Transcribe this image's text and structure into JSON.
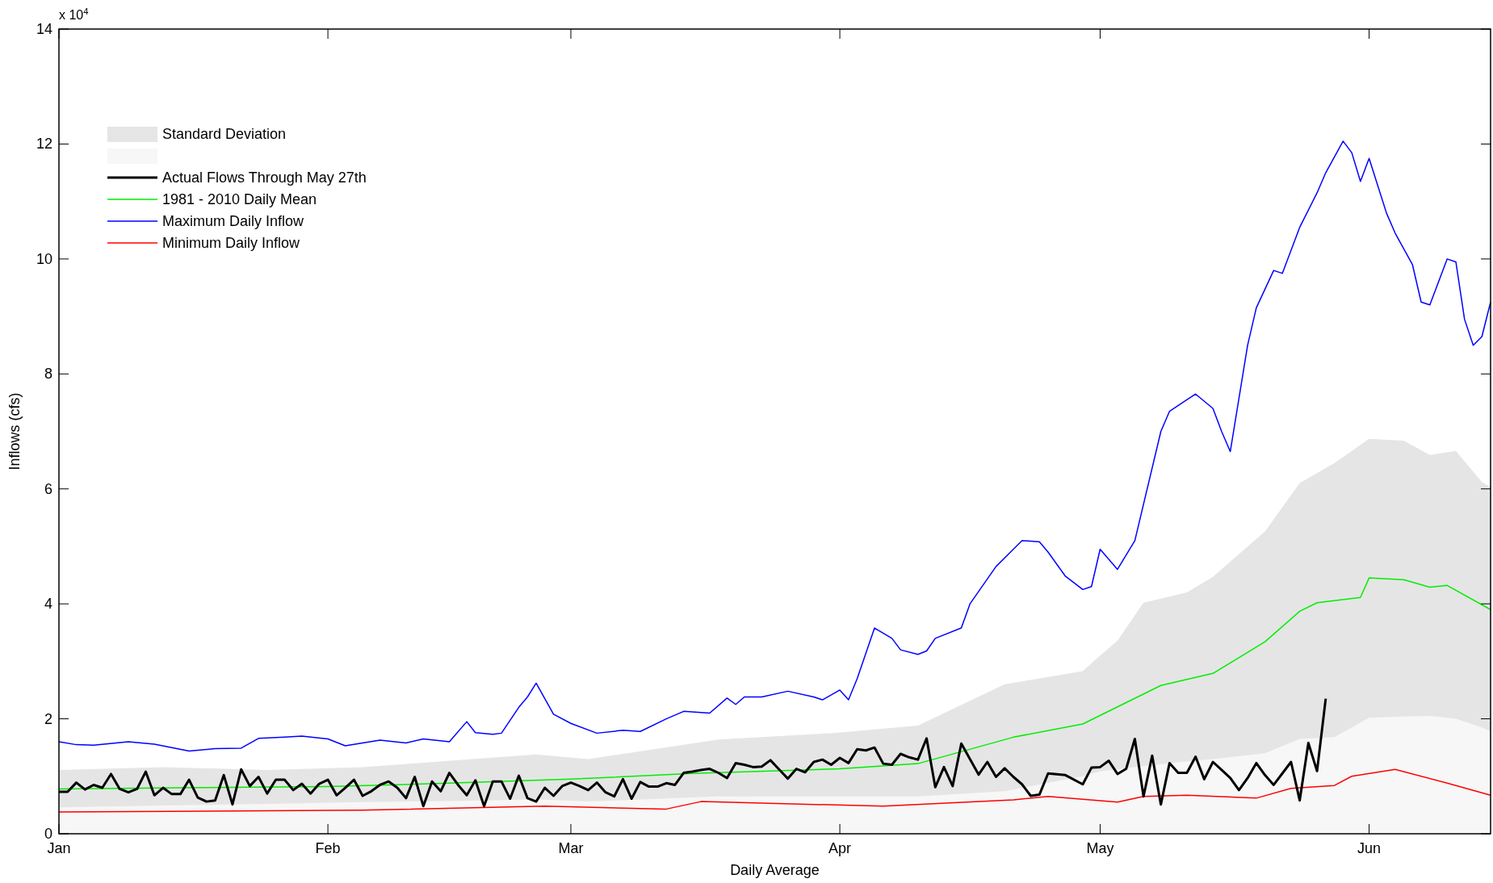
{
  "chart_data": {
    "type": "line",
    "xlabel": "Daily Average",
    "ylabel": "Inflows (cfs)",
    "annotations": [
      "x 10$^{4}$"
    ],
    "xlim": [
      "--01-01",
      "--06-15"
    ],
    "xticks": [
      {
        "value": "--01-01",
        "label": "Jan"
      },
      {
        "value": "--02-01",
        "label": "Feb"
      },
      {
        "value": "--03-01",
        "label": "Mar"
      },
      {
        "value": "--04-01",
        "label": "Apr"
      },
      {
        "value": "--05-01",
        "label": "May"
      },
      {
        "value": "--06-01",
        "label": "Jun"
      }
    ],
    "ylim": [
      0,
      14
    ],
    "yticks": [
      0,
      2,
      4,
      6,
      8,
      10,
      12,
      14
    ],
    "grid": false,
    "legend": "top left",
    "series": [
      {
        "name": "Standard Deviation",
        "type": "area",
        "color": "#e5e5e5",
        "x": [
          "--01-01",
          "--01-13",
          "--01-25",
          "--02-05",
          "--02-16",
          "--02-25",
          "--03-03",
          "--03-18",
          "--03-31",
          "--04-10",
          "--04-20",
          "--04-29",
          "--05-01",
          "--05-03",
          "--05-06",
          "--05-11",
          "--05-14",
          "--05-20",
          "--05-24",
          "--05-28",
          "--06-01",
          "--06-05",
          "--06-08",
          "--06-11",
          "--06-14",
          "--06-15"
        ],
        "values": [
          1.11,
          1.16,
          1.11,
          1.16,
          1.28,
          1.38,
          1.3,
          1.64,
          1.75,
          1.88,
          2.6,
          2.83,
          3.1,
          3.36,
          4.02,
          4.2,
          4.47,
          5.26,
          6.1,
          6.45,
          6.87,
          6.84,
          6.59,
          6.66,
          6.12,
          6.03
        ]
      },
      {
        "type": "area",
        "color": "#f7f7f7",
        "x": [
          "--01-01",
          "--01-13",
          "--01-25",
          "--02-05",
          "--02-16",
          "--02-25",
          "--03-03",
          "--03-18",
          "--03-31",
          "--04-10",
          "--04-20",
          "--04-29",
          "--05-01",
          "--05-03",
          "--05-06",
          "--05-11",
          "--05-14",
          "--05-20",
          "--05-24",
          "--05-28",
          "--06-01",
          "--06-05",
          "--06-08",
          "--06-11",
          "--06-14",
          "--06-15"
        ],
        "values": [
          0.46,
          0.49,
          0.52,
          0.55,
          0.57,
          0.6,
          0.56,
          0.65,
          0.65,
          0.65,
          0.74,
          1.0,
          1.09,
          1.12,
          1.18,
          1.26,
          1.3,
          1.4,
          1.65,
          1.68,
          2.02,
          2.04,
          2.05,
          2.0,
          1.85,
          1.78
        ]
      },
      {
        "name": "Actual Flows Through May 27th",
        "color": "#000000",
        "x": [
          "--01-01",
          "--01-02",
          "--01-03",
          "--01-04",
          "--01-05",
          "--01-06",
          "--01-07",
          "--01-08",
          "--01-09",
          "--01-10",
          "--01-11",
          "--01-12",
          "--01-13",
          "--01-14",
          "--01-15",
          "--01-16",
          "--01-17",
          "--01-18",
          "--01-19",
          "--01-20",
          "--01-21",
          "--01-22",
          "--01-23",
          "--01-24",
          "--01-25",
          "--01-26",
          "--01-27",
          "--01-28",
          "--01-29",
          "--01-30",
          "--01-31",
          "--02-01",
          "--02-02",
          "--02-03",
          "--02-04",
          "--02-05",
          "--02-06",
          "--02-07",
          "--02-08",
          "--02-09",
          "--02-10",
          "--02-11",
          "--02-12",
          "--02-13",
          "--02-14",
          "--02-15",
          "--02-16",
          "--02-17",
          "--02-18",
          "--02-19",
          "--02-20",
          "--02-21",
          "--02-22",
          "--02-23",
          "--02-24",
          "--02-25",
          "--02-26",
          "--02-27",
          "--02-28",
          "--03-01",
          "--03-02",
          "--03-03",
          "--03-04",
          "--03-05",
          "--03-06",
          "--03-07",
          "--03-08",
          "--03-09",
          "--03-10",
          "--03-11",
          "--03-12",
          "--03-13",
          "--03-14",
          "--03-15",
          "--03-16",
          "--03-17",
          "--03-18",
          "--03-19",
          "--03-20",
          "--03-21",
          "--03-22",
          "--03-23",
          "--03-24",
          "--03-25",
          "--03-26",
          "--03-27",
          "--03-28",
          "--03-29",
          "--03-30",
          "--03-31",
          "--04-01",
          "--04-02",
          "--04-03",
          "--04-04",
          "--04-05",
          "--04-06",
          "--04-07",
          "--04-08",
          "--04-09",
          "--04-10",
          "--04-11",
          "--04-12",
          "--04-13",
          "--04-14",
          "--04-15",
          "--04-16",
          "--04-17",
          "--04-18",
          "--04-19",
          "--04-20",
          "--04-21",
          "--04-22",
          "--04-23",
          "--04-24",
          "--04-25",
          "--04-27",
          "--04-29",
          "--04-30",
          "--05-01",
          "--05-02",
          "--05-03",
          "--05-04",
          "--05-05",
          "--05-06",
          "--05-07",
          "--05-08",
          "--05-09",
          "--05-10",
          "--05-11",
          "--05-12",
          "--05-13",
          "--05-14",
          "--05-15",
          "--05-16",
          "--05-17",
          "--05-18",
          "--05-19",
          "--05-20",
          "--05-21",
          "--05-22",
          "--05-23",
          "--05-24",
          "--05-25",
          "--05-26",
          "--05-27"
        ],
        "values": [
          0.73,
          0.73,
          0.89,
          0.77,
          0.85,
          0.8,
          1.04,
          0.78,
          0.72,
          0.78,
          1.08,
          0.67,
          0.8,
          0.69,
          0.69,
          0.94,
          0.63,
          0.56,
          0.58,
          1.02,
          0.51,
          1.12,
          0.83,
          0.99,
          0.7,
          0.94,
          0.94,
          0.76,
          0.87,
          0.7,
          0.87,
          0.94,
          0.67,
          0.8,
          0.94,
          0.66,
          0.74,
          0.85,
          0.91,
          0.8,
          0.62,
          0.99,
          0.48,
          0.91,
          0.74,
          1.06,
          0.85,
          0.67,
          0.93,
          0.48,
          0.91,
          0.91,
          0.61,
          1.01,
          0.62,
          0.56,
          0.8,
          0.66,
          0.83,
          0.89,
          0.83,
          0.76,
          0.89,
          0.72,
          0.65,
          0.95,
          0.61,
          0.9,
          0.82,
          0.82,
          0.88,
          0.85,
          1.06,
          1.08,
          1.11,
          1.13,
          1.06,
          0.97,
          1.23,
          1.2,
          1.16,
          1.17,
          1.28,
          1.12,
          0.96,
          1.13,
          1.07,
          1.25,
          1.29,
          1.2,
          1.32,
          1.23,
          1.47,
          1.45,
          1.5,
          1.22,
          1.2,
          1.39,
          1.33,
          1.29,
          1.66,
          0.81,
          1.16,
          0.83,
          1.57,
          1.3,
          1.03,
          1.25,
          0.99,
          1.14,
          0.99,
          0.86,
          0.66,
          0.68,
          1.05,
          1.02,
          0.86,
          1.15,
          1.16,
          1.27,
          1.04,
          1.13,
          1.65,
          0.65,
          1.36,
          0.51,
          1.23,
          1.06,
          1.06,
          1.34,
          0.95,
          1.25,
          1.11,
          0.97,
          0.76,
          0.97,
          1.23,
          1.02,
          0.85,
          1.05,
          1.25,
          0.58,
          1.58,
          1.09,
          2.35
        ]
      },
      {
        "name": "1981 - 2010 Daily Mean",
        "color": "#00ee00",
        "x": [
          "--01-01",
          "--01-15",
          "--02-01",
          "--02-15",
          "--03-01",
          "--03-15",
          "--04-01",
          "--04-10",
          "--04-21",
          "--04-29",
          "--05-08",
          "--05-14",
          "--05-20",
          "--05-24",
          "--05-26",
          "--05-31",
          "--06-01",
          "--06-05",
          "--06-08",
          "--06-10",
          "--06-15"
        ],
        "values": [
          0.78,
          0.8,
          0.82,
          0.88,
          0.95,
          1.05,
          1.13,
          1.22,
          1.68,
          1.91,
          2.58,
          2.79,
          3.34,
          3.87,
          4.02,
          4.11,
          4.45,
          4.42,
          4.29,
          4.32,
          3.9
        ]
      },
      {
        "name": "Maximum Daily Inflow",
        "color": "#0000ff",
        "x": [
          "--01-01",
          "--01-03",
          "--01-05",
          "--01-09",
          "--01-12",
          "--01-16",
          "--01-19",
          "--01-22",
          "--01-24",
          "--01-27",
          "--01-29",
          "--02-01",
          "--02-03",
          "--02-07",
          "--02-10",
          "--02-12",
          "--02-15",
          "--02-17",
          "--02-18",
          "--02-20",
          "--02-21",
          "--02-23",
          "--02-24",
          "--02-25",
          "--02-27",
          "--03-01",
          "--03-04",
          "--03-07",
          "--03-09",
          "--03-12",
          "--03-14",
          "--03-17",
          "--03-19",
          "--03-20",
          "--03-21",
          "--03-23",
          "--03-26",
          "--03-29",
          "--03-30",
          "--04-01",
          "--04-02",
          "--04-03",
          "--04-05",
          "--04-07",
          "--04-08",
          "--04-10",
          "--04-11",
          "--04-12",
          "--04-15",
          "--04-16",
          "--04-19",
          "--04-21",
          "--04-22",
          "--04-24",
          "--04-25",
          "--04-27",
          "--04-29",
          "--04-30",
          "--05-01",
          "--05-03",
          "--05-05",
          "--05-08",
          "--05-09",
          "--05-10",
          "--05-12",
          "--05-14",
          "--05-15",
          "--05-16",
          "--05-18",
          "--05-19",
          "--05-21",
          "--05-22",
          "--05-24",
          "--05-26",
          "--05-27",
          "--05-29",
          "--05-30",
          "--05-31",
          "--06-01",
          "--06-03",
          "--06-04",
          "--06-06",
          "--06-07",
          "--06-08",
          "--06-10",
          "--06-11",
          "--06-12",
          "--06-13",
          "--06-14",
          "--06-15"
        ],
        "values": [
          1.6,
          1.55,
          1.54,
          1.6,
          1.56,
          1.44,
          1.48,
          1.49,
          1.66,
          1.68,
          1.7,
          1.65,
          1.53,
          1.63,
          1.58,
          1.65,
          1.6,
          1.95,
          1.76,
          1.73,
          1.75,
          2.2,
          2.38,
          2.62,
          2.08,
          1.92,
          1.75,
          1.8,
          1.78,
          2.0,
          2.13,
          2.1,
          2.36,
          2.25,
          2.38,
          2.38,
          2.48,
          2.38,
          2.33,
          2.5,
          2.33,
          2.7,
          3.58,
          3.4,
          3.2,
          3.12,
          3.18,
          3.4,
          3.58,
          4.0,
          4.65,
          4.95,
          5.1,
          5.08,
          4.9,
          4.48,
          4.25,
          4.3,
          4.95,
          4.6,
          5.1,
          7.0,
          7.35,
          7.45,
          7.65,
          7.4,
          7.0,
          6.65,
          8.5,
          9.15,
          9.8,
          9.75,
          10.55,
          11.15,
          11.5,
          12.05,
          11.85,
          11.35,
          11.75,
          10.8,
          10.45,
          9.9,
          9.25,
          9.2,
          10.0,
          9.95,
          8.95,
          8.5,
          8.65,
          9.25
        ]
      },
      {
        "name": "Minimum Daily Inflow",
        "color": "#ff0000",
        "x": [
          "--01-01",
          "--02-05",
          "--02-26",
          "--03-12",
          "--03-16",
          "--04-06",
          "--04-21",
          "--04-25",
          "--05-03",
          "--05-06",
          "--05-11",
          "--05-19",
          "--05-23",
          "--05-28",
          "--05-30",
          "--06-04",
          "--06-10",
          "--06-15"
        ],
        "values": [
          0.38,
          0.41,
          0.48,
          0.43,
          0.56,
          0.48,
          0.59,
          0.65,
          0.55,
          0.65,
          0.67,
          0.62,
          0.79,
          0.84,
          1.0,
          1.12,
          0.88,
          0.67
        ]
      }
    ]
  }
}
